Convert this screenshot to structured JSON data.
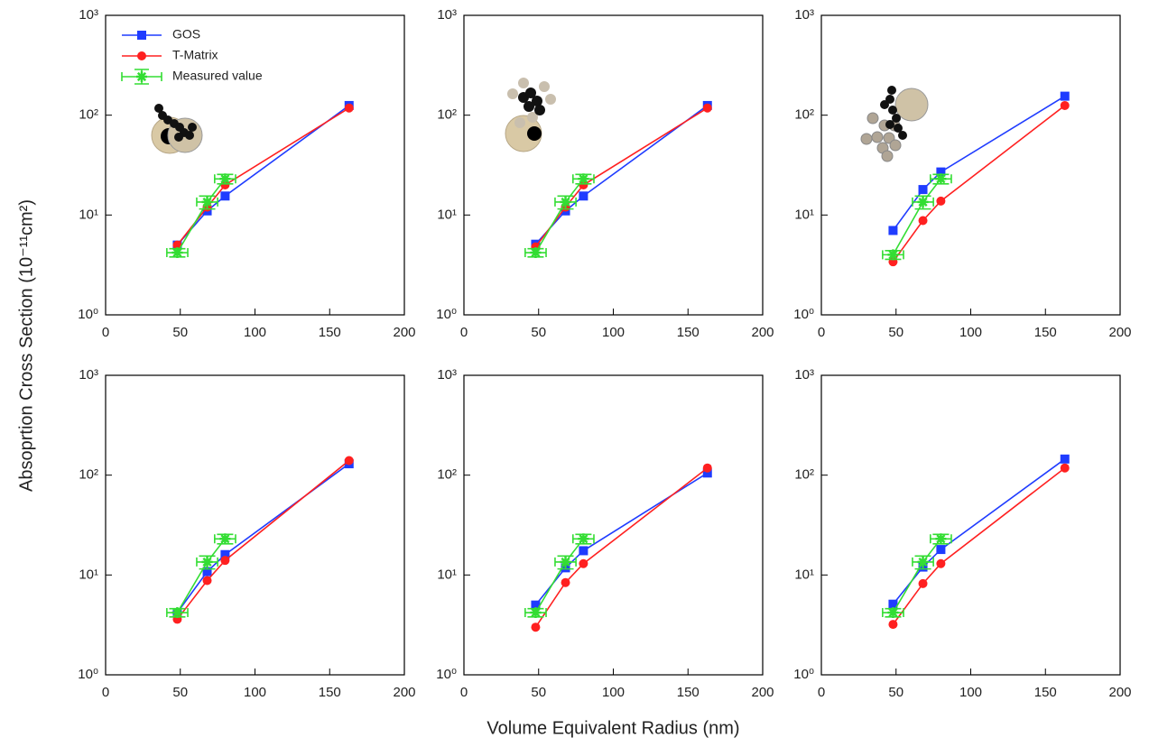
{
  "chart_data": [
    {
      "type": "line",
      "log_y": true,
      "xlim": [
        0,
        200
      ],
      "xticks": [
        0,
        50,
        100,
        150,
        200
      ],
      "ylim": [
        1,
        1000
      ],
      "yticks": [
        {
          "value": 1,
          "label": "10⁰"
        },
        {
          "value": 10,
          "label": "10¹"
        },
        {
          "value": 100,
          "label": "10²"
        },
        {
          "value": 1000,
          "label": "10³"
        }
      ],
      "ylabel": "Absoprtion Cross Section (10⁻¹¹cm²)",
      "legend": "upper left",
      "series": [
        {
          "name": "GOS",
          "color": "#1f3cff",
          "marker": "square",
          "x": [
            48,
            68,
            80,
            163
          ],
          "values": [
            5.0,
            11,
            15.5,
            125
          ]
        },
        {
          "name": "T-Matrix",
          "color": "#ff2020",
          "marker": "circle",
          "x": [
            48,
            68,
            80,
            163
          ],
          "values": [
            5.0,
            12,
            20,
            118
          ]
        },
        {
          "name": "Measured value",
          "color": "#33dd33",
          "marker": "star",
          "x": [
            48,
            68,
            80
          ],
          "values": [
            4.2,
            13.5,
            23
          ],
          "xerr": [
            7,
            7,
            7
          ],
          "yerr": [
            0.4,
            2,
            2.5
          ]
        }
      ]
    },
    {
      "type": "line",
      "log_y": true,
      "xlim": [
        0,
        200
      ],
      "xticks": [
        0,
        50,
        100,
        150,
        200
      ],
      "ylim": [
        1,
        1000
      ],
      "yticks": [
        {
          "value": 1,
          "label": "10⁰"
        },
        {
          "value": 10,
          "label": "10¹"
        },
        {
          "value": 100,
          "label": "10²"
        },
        {
          "value": 1000,
          "label": "10³"
        }
      ],
      "series": [
        {
          "color": "#1f3cff",
          "marker": "square",
          "x": [
            48,
            68,
            80,
            163
          ],
          "values": [
            5.1,
            11,
            15.5,
            125
          ]
        },
        {
          "color": "#ff2020",
          "marker": "circle",
          "x": [
            48,
            68,
            80,
            163
          ],
          "values": [
            4.8,
            12,
            20,
            118
          ]
        },
        {
          "color": "#33dd33",
          "marker": "star",
          "x": [
            48,
            68,
            80
          ],
          "values": [
            4.2,
            13.5,
            23
          ],
          "xerr": [
            7,
            7,
            7
          ],
          "yerr": [
            0.4,
            2,
            2.5
          ]
        }
      ]
    },
    {
      "type": "line",
      "log_y": true,
      "xlim": [
        0,
        200
      ],
      "xticks": [
        0,
        50,
        100,
        150,
        200
      ],
      "ylim": [
        1,
        1000
      ],
      "yticks": [
        {
          "value": 1,
          "label": "10⁰"
        },
        {
          "value": 10,
          "label": "10¹"
        },
        {
          "value": 100,
          "label": "10²"
        },
        {
          "value": 1000,
          "label": "10³"
        }
      ],
      "series": [
        {
          "color": "#1f3cff",
          "marker": "square",
          "x": [
            48,
            68,
            80,
            163
          ],
          "values": [
            7,
            18,
            27,
            155
          ]
        },
        {
          "color": "#ff2020",
          "marker": "circle",
          "x": [
            48,
            68,
            80,
            163
          ],
          "values": [
            3.4,
            8.8,
            13.8,
            125
          ]
        },
        {
          "color": "#33dd33",
          "marker": "star",
          "x": [
            48,
            68,
            80
          ],
          "values": [
            4.0,
            13.5,
            23
          ],
          "xerr": [
            7,
            7,
            7
          ],
          "yerr": [
            0.4,
            2,
            2.5
          ]
        }
      ]
    },
    {
      "type": "line",
      "log_y": true,
      "xlim": [
        0,
        200
      ],
      "xticks": [
        0,
        50,
        100,
        150,
        200
      ],
      "ylim": [
        1,
        1000
      ],
      "yticks": [
        {
          "value": 1,
          "label": "10⁰"
        },
        {
          "value": 10,
          "label": "10¹"
        },
        {
          "value": 100,
          "label": "10²"
        },
        {
          "value": 1000,
          "label": "10³"
        }
      ],
      "series": [
        {
          "color": "#1f3cff",
          "marker": "square",
          "x": [
            48,
            68,
            80,
            163
          ],
          "values": [
            4.2,
            10.8,
            16,
            130
          ]
        },
        {
          "color": "#ff2020",
          "marker": "circle",
          "x": [
            48,
            68,
            80,
            163
          ],
          "values": [
            3.6,
            8.8,
            14,
            140
          ]
        },
        {
          "color": "#33dd33",
          "marker": "star",
          "x": [
            48,
            68,
            80
          ],
          "values": [
            4.2,
            13.5,
            23
          ],
          "xerr": [
            7,
            7,
            7
          ],
          "yerr": [
            0.4,
            2,
            2.5
          ]
        }
      ]
    },
    {
      "type": "line",
      "log_y": true,
      "xlim": [
        0,
        200
      ],
      "xticks": [
        0,
        50,
        100,
        150,
        200
      ],
      "ylim": [
        1,
        1000
      ],
      "yticks": [
        {
          "value": 1,
          "label": "10⁰"
        },
        {
          "value": 10,
          "label": "10¹"
        },
        {
          "value": 100,
          "label": "10²"
        },
        {
          "value": 1000,
          "label": "10³"
        }
      ],
      "xlabel": "Volume Equivalent Radius (nm)",
      "series": [
        {
          "color": "#1f3cff",
          "marker": "square",
          "x": [
            48,
            68,
            80,
            163
          ],
          "values": [
            5.0,
            11.8,
            17.5,
            105
          ]
        },
        {
          "color": "#ff2020",
          "marker": "circle",
          "x": [
            48,
            68,
            80,
            163
          ],
          "values": [
            3.0,
            8.4,
            13,
            118
          ]
        },
        {
          "color": "#33dd33",
          "marker": "star",
          "x": [
            48,
            68,
            80
          ],
          "values": [
            4.2,
            13.5,
            23
          ],
          "xerr": [
            7,
            7,
            7
          ],
          "yerr": [
            0.4,
            2,
            2.5
          ]
        }
      ]
    },
    {
      "type": "line",
      "log_y": true,
      "xlim": [
        0,
        200
      ],
      "xticks": [
        0,
        50,
        100,
        150,
        200
      ],
      "ylim": [
        1,
        1000
      ],
      "yticks": [
        {
          "value": 1,
          "label": "10⁰"
        },
        {
          "value": 10,
          "label": "10¹"
        },
        {
          "value": 100,
          "label": "10²"
        },
        {
          "value": 1000,
          "label": "10³"
        }
      ],
      "series": [
        {
          "color": "#1f3cff",
          "marker": "square",
          "x": [
            48,
            68,
            80,
            163
          ],
          "values": [
            5.1,
            12,
            18,
            145
          ]
        },
        {
          "color": "#ff2020",
          "marker": "circle",
          "x": [
            48,
            68,
            80,
            163
          ],
          "values": [
            3.2,
            8.2,
            13,
            118
          ]
        },
        {
          "color": "#33dd33",
          "marker": "star",
          "x": [
            48,
            68,
            80
          ],
          "values": [
            4.2,
            13.5,
            23
          ],
          "xerr": [
            7,
            7,
            7
          ],
          "yerr": [
            0.4,
            2,
            2.5
          ]
        }
      ]
    }
  ]
}
